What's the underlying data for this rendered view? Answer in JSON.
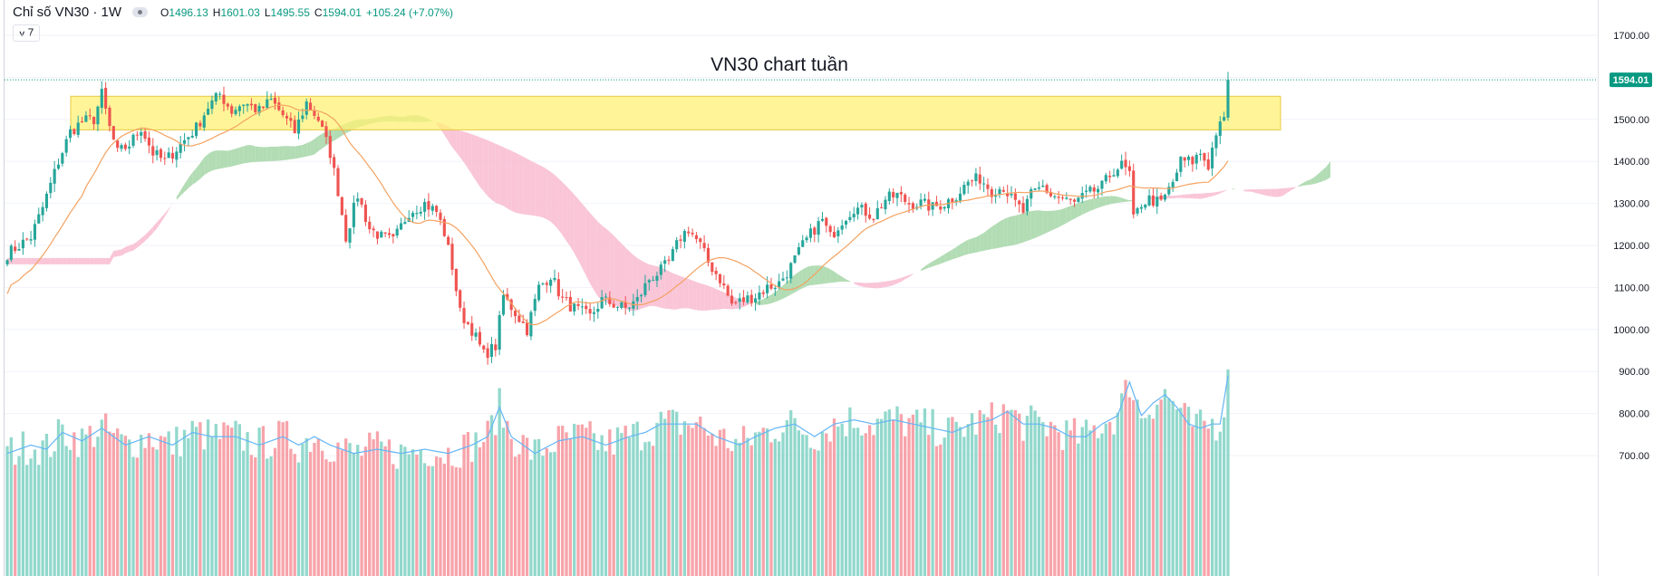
{
  "header": {
    "symbol": "Chỉ số VN30 · 1W",
    "open_label": "O",
    "open": "1496.13",
    "high_label": "H",
    "high": "1601.03",
    "low_label": "L",
    "low": "1495.55",
    "close_label": "C",
    "close": "1594.01",
    "change": "+105.24 (+7.07%)",
    "indicators_count": "7"
  },
  "chart_data": {
    "type": "candlestick",
    "title": "VN30 chart tuần",
    "y_ticks": [
      "1700.00",
      "1600.00",
      "1500.00",
      "1400.00",
      "1300.00",
      "1200.00",
      "1100.00",
      "1000.00",
      "900.00",
      "800.00",
      "700.00"
    ],
    "last_price_label": "1594.01",
    "last_price": 1594.01,
    "resistance_zone": {
      "from": 1475,
      "to": 1555,
      "color": "#fff176"
    },
    "colors": {
      "up": "#26a69a",
      "down": "#ef5350",
      "vol_up": "#92d8cc",
      "vol_down": "#f7a3aa",
      "ma": "#f4a261",
      "vol_ma": "#64b5f6",
      "cloud_bull": "#a5d6a7",
      "cloud_bear": "#f8bbd0",
      "last_price": "#089981"
    },
    "close_path": [
      [
        0,
        1180
      ],
      [
        3,
        1200
      ],
      [
        6,
        1220
      ],
      [
        9,
        1290
      ],
      [
        13,
        1400
      ],
      [
        16,
        1470
      ],
      [
        19,
        1495
      ],
      [
        22,
        1500
      ],
      [
        24,
        1560
      ],
      [
        26,
        1480
      ],
      [
        28,
        1420
      ],
      [
        31,
        1440
      ],
      [
        34,
        1480
      ],
      [
        37,
        1420
      ],
      [
        40,
        1400
      ],
      [
        44,
        1440
      ],
      [
        48,
        1480
      ],
      [
        51,
        1530
      ],
      [
        54,
        1560
      ],
      [
        57,
        1520
      ],
      [
        60,
        1540
      ],
      [
        64,
        1520
      ],
      [
        67,
        1545
      ],
      [
        70,
        1510
      ],
      [
        73,
        1470
      ],
      [
        76,
        1540
      ],
      [
        79,
        1500
      ],
      [
        82,
        1420
      ],
      [
        84,
        1330
      ],
      [
        86,
        1220
      ],
      [
        89,
        1320
      ],
      [
        92,
        1240
      ],
      [
        95,
        1220
      ],
      [
        98,
        1210
      ],
      [
        102,
        1280
      ],
      [
        106,
        1300
      ],
      [
        109,
        1280
      ],
      [
        111,
        1230
      ],
      [
        113,
        1150
      ],
      [
        115,
        1040
      ],
      [
        118,
        1000
      ],
      [
        121,
        940
      ],
      [
        124,
        960
      ],
      [
        126,
        1080
      ],
      [
        129,
        1040
      ],
      [
        132,
        1000
      ],
      [
        135,
        1100
      ],
      [
        138,
        1130
      ],
      [
        141,
        1070
      ],
      [
        144,
        1050
      ],
      [
        148,
        1030
      ],
      [
        151,
        1070
      ],
      [
        154,
        1060
      ],
      [
        157,
        1050
      ],
      [
        160,
        1070
      ],
      [
        163,
        1120
      ],
      [
        166,
        1140
      ],
      [
        168,
        1160
      ],
      [
        171,
        1220
      ],
      [
        173,
        1240
      ],
      [
        176,
        1200
      ],
      [
        178,
        1160
      ],
      [
        181,
        1120
      ],
      [
        184,
        1060
      ],
      [
        187,
        1070
      ],
      [
        190,
        1080
      ],
      [
        193,
        1100
      ],
      [
        196,
        1110
      ],
      [
        199,
        1150
      ],
      [
        202,
        1200
      ],
      [
        205,
        1240
      ],
      [
        207,
        1260
      ],
      [
        209,
        1220
      ],
      [
        212,
        1260
      ],
      [
        215,
        1290
      ],
      [
        218,
        1280
      ],
      [
        220,
        1270
      ],
      [
        223,
        1310
      ],
      [
        226,
        1320
      ],
      [
        229,
        1300
      ],
      [
        232,
        1300
      ],
      [
        235,
        1290
      ],
      [
        238,
        1300
      ],
      [
        241,
        1320
      ],
      [
        244,
        1350
      ],
      [
        247,
        1360
      ],
      [
        250,
        1330
      ],
      [
        253,
        1340
      ],
      [
        255,
        1310
      ],
      [
        258,
        1280
      ],
      [
        260,
        1320
      ],
      [
        263,
        1340
      ],
      [
        265,
        1320
      ],
      [
        268,
        1310
      ],
      [
        271,
        1300
      ],
      [
        274,
        1320
      ],
      [
        278,
        1340
      ],
      [
        281,
        1380
      ],
      [
        283,
        1390
      ],
      [
        285,
        1370
      ],
      [
        286,
        1260
      ],
      [
        288,
        1300
      ],
      [
        290,
        1310
      ],
      [
        293,
        1300
      ],
      [
        296,
        1350
      ],
      [
        298,
        1400
      ],
      [
        301,
        1400
      ],
      [
        303,
        1420
      ],
      [
        305,
        1390
      ],
      [
        307,
        1470
      ],
      [
        309,
        1496
      ],
      [
        310,
        1594
      ]
    ],
    "volume_path": [
      [
        0,
        720
      ],
      [
        6,
        740
      ],
      [
        10,
        730
      ],
      [
        14,
        770
      ],
      [
        19,
        750
      ],
      [
        24,
        780
      ],
      [
        30,
        740
      ],
      [
        36,
        760
      ],
      [
        42,
        740
      ],
      [
        47,
        770
      ],
      [
        52,
        760
      ],
      [
        58,
        760
      ],
      [
        64,
        740
      ],
      [
        70,
        760
      ],
      [
        74,
        740
      ],
      [
        78,
        760
      ],
      [
        82,
        740
      ],
      [
        88,
        720
      ],
      [
        94,
        730
      ],
      [
        100,
        720
      ],
      [
        106,
        730
      ],
      [
        112,
        720
      ],
      [
        118,
        740
      ],
      [
        122,
        760
      ],
      [
        125,
        830
      ],
      [
        128,
        760
      ],
      [
        134,
        720
      ],
      [
        140,
        750
      ],
      [
        146,
        760
      ],
      [
        152,
        740
      ],
      [
        158,
        760
      ],
      [
        162,
        770
      ],
      [
        166,
        790
      ],
      [
        170,
        790
      ],
      [
        175,
        790
      ],
      [
        180,
        760
      ],
      [
        186,
        740
      ],
      [
        190,
        760
      ],
      [
        195,
        780
      ],
      [
        200,
        790
      ],
      [
        205,
        760
      ],
      [
        210,
        790
      ],
      [
        215,
        800
      ],
      [
        220,
        790
      ],
      [
        225,
        800
      ],
      [
        230,
        790
      ],
      [
        235,
        780
      ],
      [
        240,
        770
      ],
      [
        245,
        790
      ],
      [
        250,
        800
      ],
      [
        254,
        820
      ],
      [
        258,
        790
      ],
      [
        262,
        790
      ],
      [
        266,
        780
      ],
      [
        270,
        760
      ],
      [
        274,
        760
      ],
      [
        278,
        790
      ],
      [
        282,
        810
      ],
      [
        285,
        890
      ],
      [
        288,
        810
      ],
      [
        291,
        840
      ],
      [
        294,
        860
      ],
      [
        297,
        830
      ],
      [
        300,
        790
      ],
      [
        303,
        780
      ],
      [
        306,
        790
      ],
      [
        308,
        790
      ],
      [
        310,
        905
      ]
    ],
    "n_bars": 311
  }
}
